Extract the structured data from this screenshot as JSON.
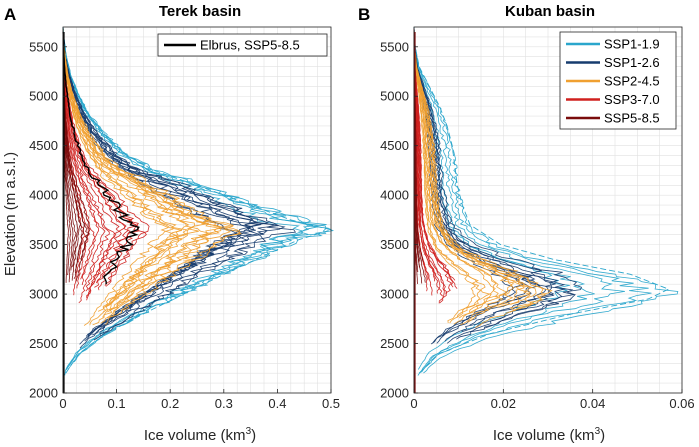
{
  "colors": {
    "SSP1-1.9": "#2aa6cc",
    "SSP1-2.6": "#173c6e",
    "SSP2-4.5": "#f0a030",
    "SSP3-7.0": "#d0201e",
    "SSP5-8.5": "#7a0c0c",
    "Elbrus": "#000000",
    "grid": "#e1e1e1",
    "axis": "#262626"
  },
  "chart_data": [
    {
      "type": "line",
      "panel": "A",
      "title": "Terek basin",
      "xlabel": "Ice volume (km",
      "xlabel_sup": "3",
      "xlabel_close": ")",
      "ylabel": "Elevation (m a.s.l.)",
      "xlim": [
        0,
        0.5
      ],
      "ylim": [
        2000,
        5700
      ],
      "xticks": [
        0,
        0.1,
        0.2,
        0.3,
        0.4,
        0.5
      ],
      "xtick_labels": [
        "0",
        "0.1",
        "0.2",
        "0.3",
        "0.4",
        "0.5"
      ],
      "yticks": [
        2000,
        2500,
        3000,
        3500,
        4000,
        4500,
        5000,
        5500
      ],
      "ytick_labels": [
        "2000",
        "2500",
        "3000",
        "3500",
        "4000",
        "4500",
        "5000",
        "5500"
      ],
      "legend": [
        "Elbrus, SSP5-8.5"
      ],
      "legend_position": "top-right",
      "series": [
        {
          "name": "SSP1-1.9",
          "scale": [
            0.46,
            0.5
          ],
          "count": 5
        },
        {
          "name": "SSP1-2.6",
          "scale": [
            0.33,
            0.42
          ],
          "count": 10
        },
        {
          "name": "SSP2-4.5",
          "scale": [
            0.2,
            0.33
          ],
          "count": 14
        },
        {
          "name": "SSP3-7.0",
          "scale": [
            0.04,
            0.16
          ],
          "count": 14
        },
        {
          "name": "SSP5-8.5",
          "scale": [
            0.01,
            0.05
          ],
          "count": 10
        }
      ],
      "profile": {
        "elev": [
          2000,
          2200,
          2400,
          2600,
          2800,
          3000,
          3200,
          3400,
          3550,
          3650,
          3750,
          3900,
          4050,
          4250,
          4400,
          4600,
          4800,
          5000,
          5200,
          5400,
          5600,
          5700
        ],
        "rel": [
          0,
          0.01,
          0.06,
          0.16,
          0.3,
          0.45,
          0.6,
          0.76,
          0.88,
          1.0,
          0.85,
          0.7,
          0.55,
          0.34,
          0.24,
          0.16,
          0.1,
          0.06,
          0.03,
          0.012,
          0.003,
          0
        ]
      },
      "dashed_peak": {
        "value": 0.5,
        "elev": 3660
      }
    },
    {
      "type": "line",
      "panel": "B",
      "title": "Kuban basin",
      "xlabel": "Ice volume (km",
      "xlabel_sup": "3",
      "xlabel_close": ")",
      "ylabel": "",
      "xlim": [
        0,
        0.06
      ],
      "ylim": [
        2000,
        5700
      ],
      "xticks": [
        0,
        0.02,
        0.04,
        0.06
      ],
      "xtick_labels": [
        "0",
        "0.02",
        "0.04",
        "0.06"
      ],
      "yticks": [
        2000,
        2500,
        3000,
        3500,
        4000,
        4500,
        5000,
        5500
      ],
      "ytick_labels": [
        "2000",
        "2500",
        "3000",
        "3500",
        "4000",
        "4500",
        "5000",
        "5500"
      ],
      "legend": [
        "SSP1-1.9",
        "SSP1-2.6",
        "SSP2-4.5",
        "SSP3-7.0",
        "SSP5-8.5"
      ],
      "legend_position": "top-right",
      "series": [
        {
          "name": "SSP1-1.9",
          "scale": [
            0.034,
            0.057
          ],
          "count": 5
        },
        {
          "name": "SSP1-2.6",
          "scale": [
            0.022,
            0.037
          ],
          "count": 10
        },
        {
          "name": "SSP2-4.5",
          "scale": [
            0.014,
            0.03
          ],
          "count": 14
        },
        {
          "name": "SSP3-7.0",
          "scale": [
            0.003,
            0.01
          ],
          "count": 12
        },
        {
          "name": "SSP5-8.5",
          "scale": [
            0.0005,
            0.003
          ],
          "count": 8
        }
      ],
      "profile": {
        "elev": [
          2000,
          2200,
          2400,
          2600,
          2800,
          2950,
          3050,
          3200,
          3350,
          3500,
          3700,
          3900,
          4100,
          4300,
          4500,
          4700,
          4900,
          5100,
          5300,
          5500,
          5700
        ],
        "rel": [
          0,
          0.02,
          0.1,
          0.3,
          0.62,
          0.92,
          1.0,
          0.85,
          0.55,
          0.34,
          0.22,
          0.19,
          0.17,
          0.16,
          0.15,
          0.13,
          0.1,
          0.06,
          0.02,
          0.005,
          0
        ]
      },
      "dashed_peak": {
        "value": 0.057,
        "elev": 3000
      }
    }
  ]
}
